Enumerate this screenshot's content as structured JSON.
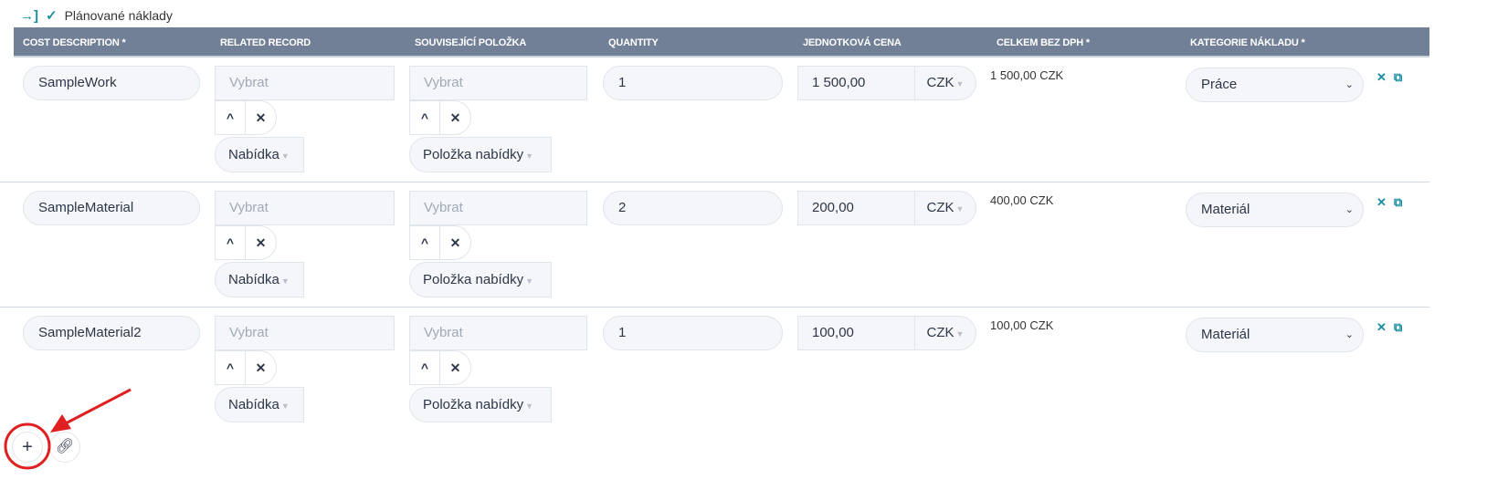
{
  "section": {
    "title": "Plánované náklady",
    "collapse_icon": "arrow-into-bracket-icon",
    "check_icon": "check-icon"
  },
  "header": [
    "COST DESCRIPTION *",
    "RELATED RECORD",
    "SOUVISEJÍCÍ POLOŽKA",
    "QUANTITY",
    "JEDNOTKOVÁ CENA",
    "CELKEM BEZ DPH *",
    "KATEGORIE NÁKLADU *"
  ],
  "rows": [
    {
      "description": "SampleWork",
      "related_placeholder": "Vybrat",
      "related_type": "Nabídka",
      "item_placeholder": "Vybrat",
      "item_type": "Položka nabídky",
      "quantity": "1",
      "unit_price": "1 500,00",
      "currency": "CZK",
      "total": "1 500,00 CZK",
      "category": "Práce"
    },
    {
      "description": "SampleMaterial",
      "related_placeholder": "Vybrat",
      "related_type": "Nabídka",
      "item_placeholder": "Vybrat",
      "item_type": "Položka nabídky",
      "quantity": "2",
      "unit_price": "200,00",
      "currency": "CZK",
      "total": "400,00 CZK",
      "category": "Materiál"
    },
    {
      "description": "SampleMaterial2",
      "related_placeholder": "Vybrat",
      "related_type": "Nabídka",
      "item_placeholder": "Vybrat",
      "item_type": "Položka nabídky",
      "quantity": "1",
      "unit_price": "100,00",
      "currency": "CZK",
      "total": "100,00 CZK",
      "category": "Materiál"
    }
  ],
  "footer": {
    "add_icon": "plus-icon",
    "link_icon": "link-icon"
  },
  "colors": {
    "header_bg": "#718096",
    "accent": "#1a8ea0",
    "annotation": "#e02020"
  }
}
